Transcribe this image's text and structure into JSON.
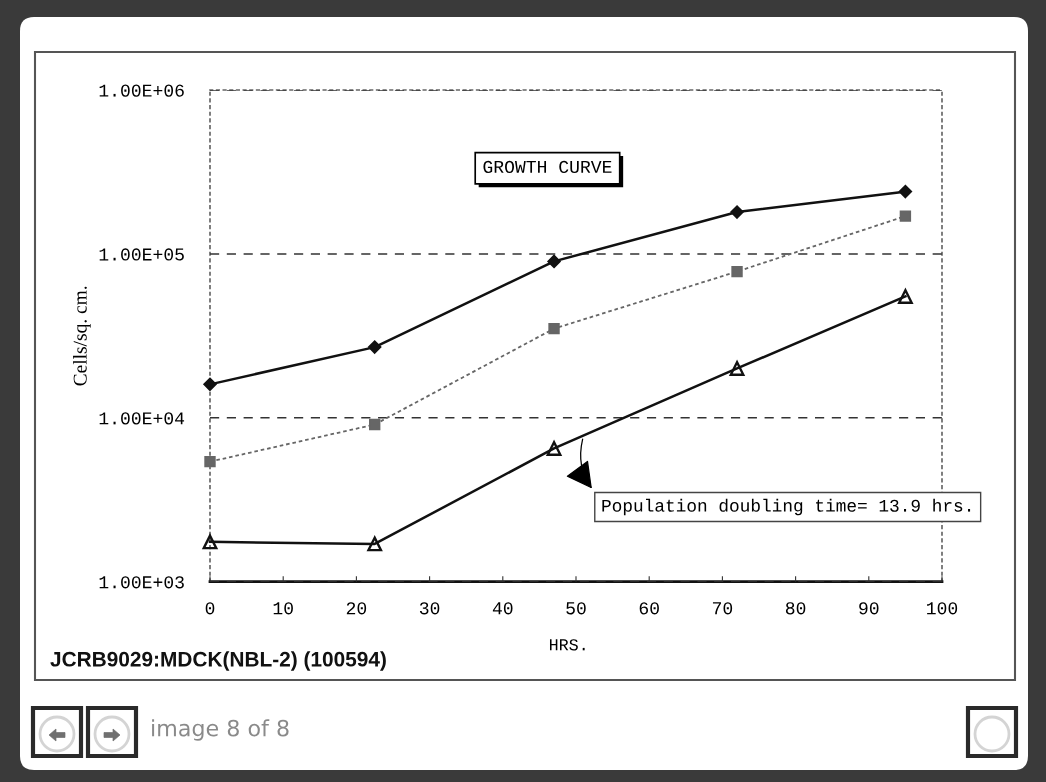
{
  "chart_data": {
    "type": "line",
    "title": "GROWTH CURVE",
    "xlabel": "HRS.",
    "ylabel": "Cells/sq. cm.",
    "x": [
      0,
      22.5,
      47,
      72,
      95
    ],
    "series": [
      {
        "color": "#111111",
        "marker": "diamond",
        "line_style": "solid",
        "values": [
          16000,
          27000,
          90000,
          180000,
          240000
        ]
      },
      {
        "color": "#666666",
        "marker": "square",
        "line_style": "dotted",
        "values": [
          5400,
          9100,
          35000,
          78000,
          170000
        ]
      },
      {
        "color": "#111111",
        "marker": "triangle",
        "line_style": "solid",
        "values": [
          1750,
          1700,
          6500,
          20000,
          55000
        ]
      }
    ],
    "log": "y",
    "xlim": [
      0,
      100
    ],
    "xticks": [
      0,
      10,
      20,
      30,
      40,
      50,
      60,
      70,
      80,
      90,
      100
    ],
    "ylim": [
      1000,
      1000000
    ],
    "yticks": [
      {
        "value": 1000,
        "label": "1.00E+03"
      },
      {
        "value": 10000,
        "label": "1.00E+04"
      },
      {
        "value": 100000,
        "label": "1.00E+05"
      },
      {
        "value": 1000000,
        "label": "1.00E+06"
      }
    ],
    "grid": "y",
    "annotations": [
      {
        "text": "Population doubling time= 13.9 hrs.",
        "x": 51,
        "y": 7700
      },
      "JCRB9029:MDCK(NBL-2) (100594)",
      "image 8 of 8"
    ]
  }
}
